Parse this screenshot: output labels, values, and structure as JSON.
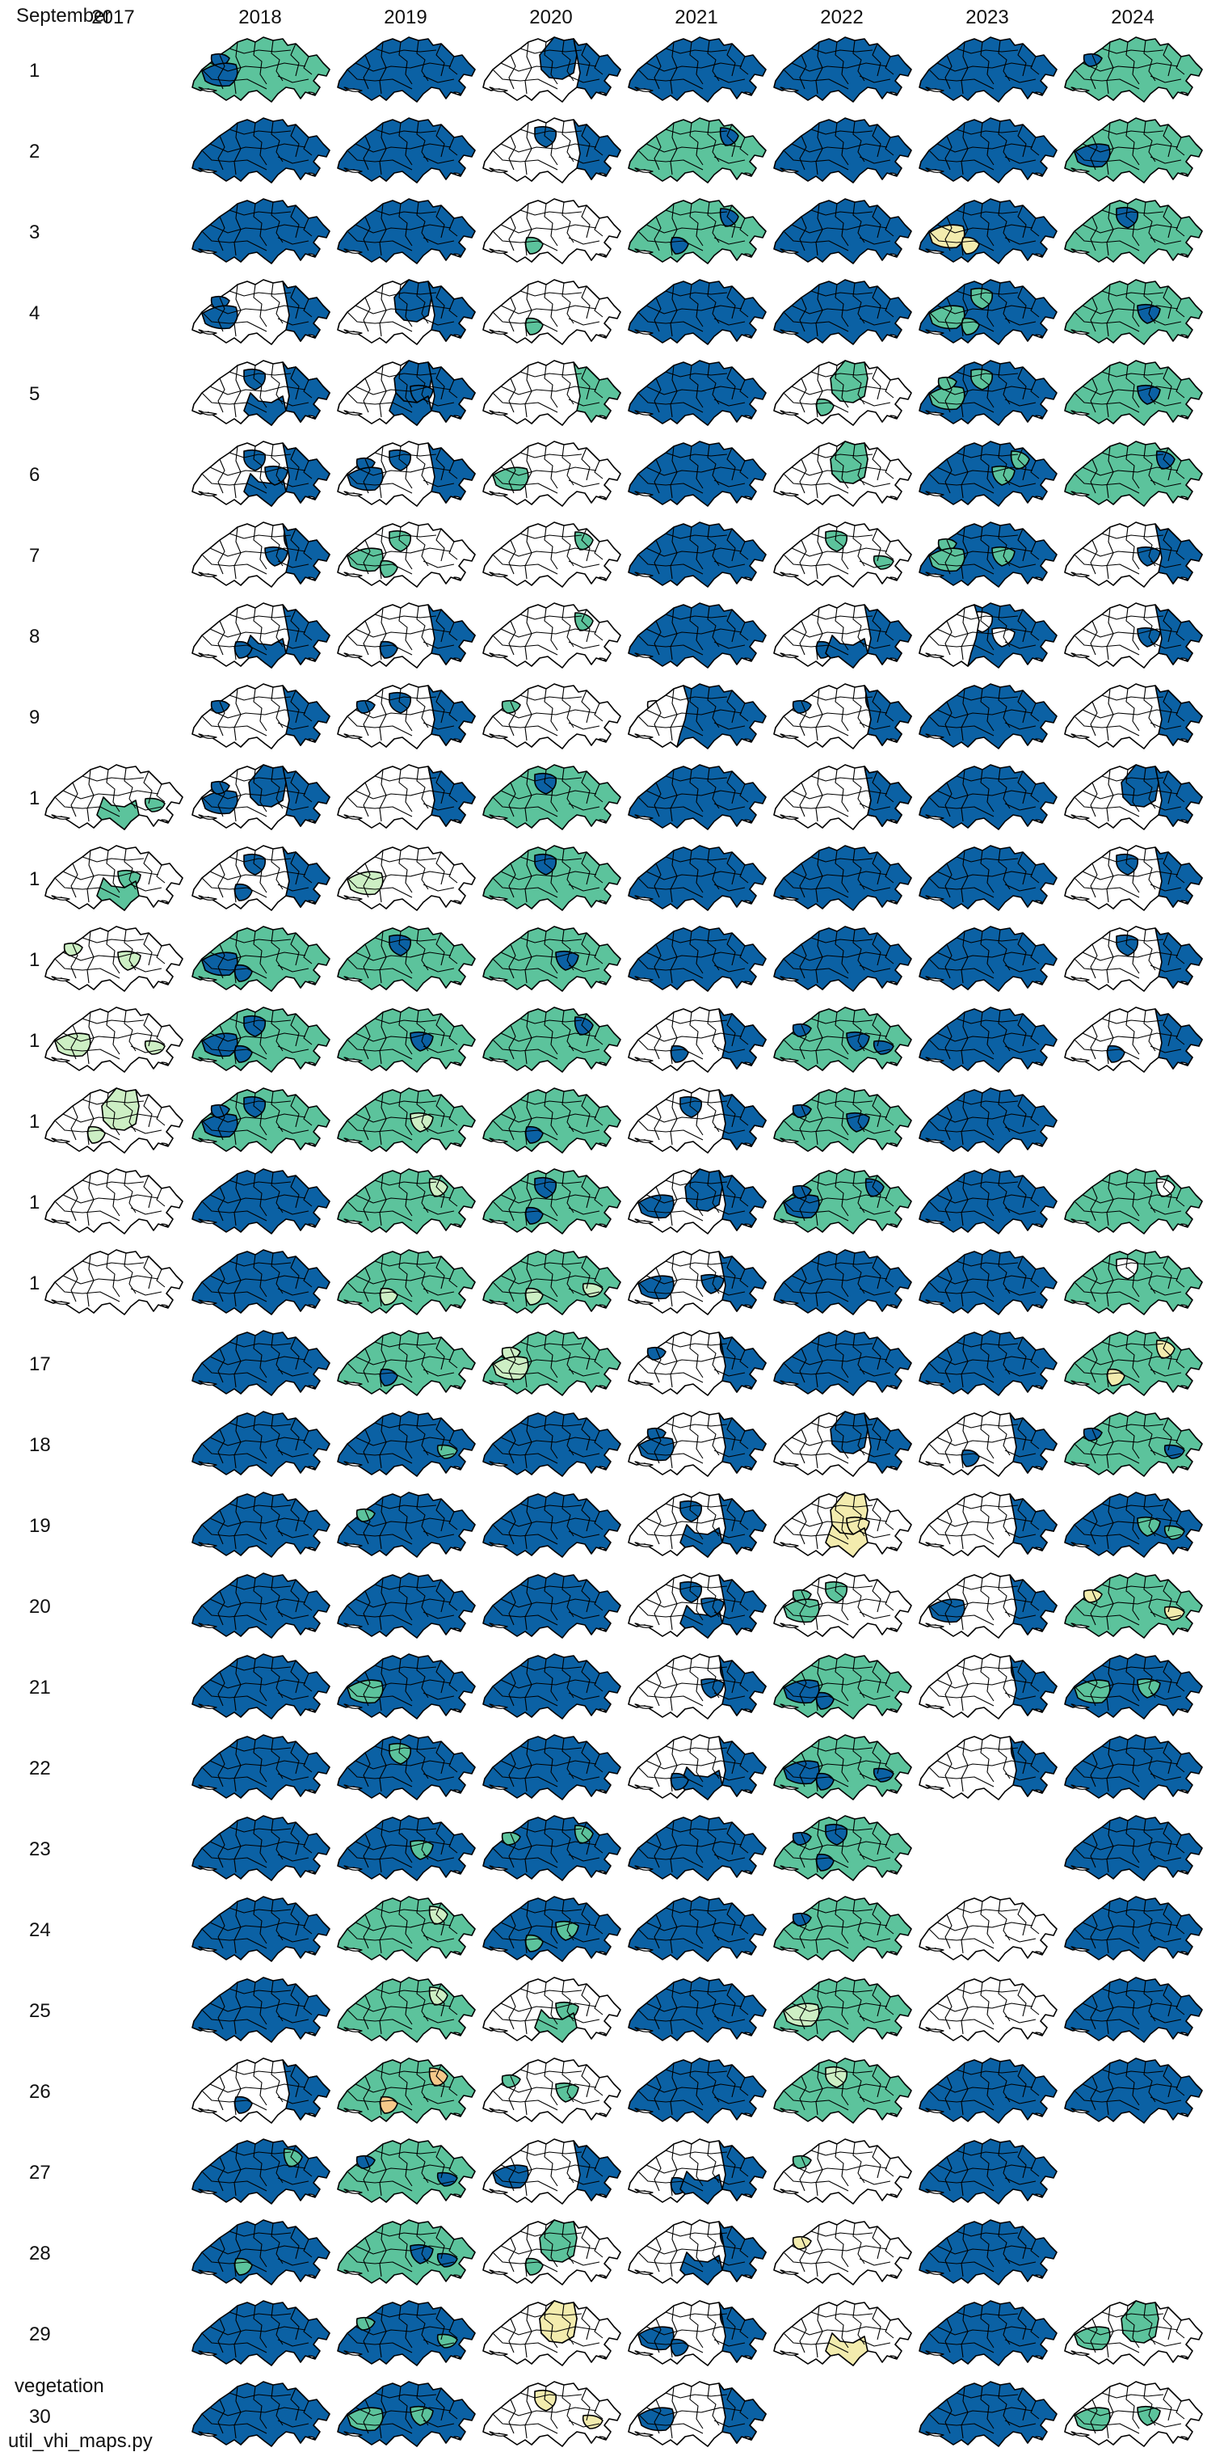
{
  "header": {
    "month_label": "September"
  },
  "years": [
    "2017",
    "2018",
    "2019",
    "2020",
    "2021",
    "2022",
    "2023",
    "2024"
  ],
  "days": [
    "1",
    "2",
    "3",
    "4",
    "5",
    "6",
    "7",
    "8",
    "9",
    "1",
    "1",
    "1",
    "1",
    "1",
    "1",
    "1",
    "17",
    "18",
    "19",
    "20",
    "21",
    "22",
    "23",
    "24",
    "25",
    "26",
    "27",
    "28",
    "29",
    "30"
  ],
  "footer": {
    "variable_label": "vegetation",
    "script_label": "util_vhi_maps.py"
  },
  "palette": {
    "B": "#0b61a4",
    "W": "#ffffff",
    "G": "#5cc39c",
    "L": "#cdefc4",
    "Y": "#f3ecae",
    "O": "#f5c98a"
  },
  "grid": [
    [
      "-",
      "GB",
      "B",
      "WB",
      "B",
      "B",
      "B",
      "GB"
    ],
    [
      "-",
      "B",
      "B",
      "WB",
      "GB",
      "B",
      "B",
      "GB"
    ],
    [
      "-",
      "B",
      "B",
      "WG",
      "GB",
      "B",
      "BY",
      "GB"
    ],
    [
      "-",
      "WB",
      "WB",
      "WG",
      "B",
      "B",
      "BG",
      "GB"
    ],
    [
      "-",
      "WB",
      "WB",
      "WG",
      "B",
      "WG",
      "BG",
      "GB"
    ],
    [
      "-",
      "WB",
      "WB",
      "WG",
      "B",
      "WG",
      "BG",
      "GB"
    ],
    [
      "-",
      "WB",
      "WG",
      "WG",
      "B",
      "WG",
      "BG",
      "WB"
    ],
    [
      "-",
      "WB",
      "WB",
      "WG",
      "B",
      "WB",
      "BW",
      "WB"
    ],
    [
      "-",
      "WB",
      "WB",
      "WG",
      "BW",
      "WB",
      "B",
      "WB"
    ],
    [
      "WG",
      "WB",
      "WB",
      "GB",
      "B",
      "WB",
      "B",
      "WB"
    ],
    [
      "WG",
      "WB",
      "WL",
      "GB",
      "B",
      "B",
      "B",
      "WB"
    ],
    [
      "WL",
      "GB",
      "GB",
      "GB",
      "B",
      "B",
      "B",
      "WB"
    ],
    [
      "WL",
      "GB",
      "GB",
      "GB",
      "WB",
      "GB",
      "B",
      "WB"
    ],
    [
      "WL",
      "GB",
      "GL",
      "GB",
      "WB",
      "GB",
      "B",
      "-"
    ],
    [
      "W",
      "B",
      "GL",
      "GB",
      "WB",
      "GB",
      "B",
      "GW"
    ],
    [
      "W",
      "B",
      "GL",
      "GL",
      "WB",
      "B",
      "B",
      "GW"
    ],
    [
      "-",
      "B",
      "GB",
      "GL",
      "WB",
      "B",
      "B",
      "GY"
    ],
    [
      "-",
      "B",
      "BG",
      "B",
      "WB",
      "WB",
      "WB",
      "GB"
    ],
    [
      "-",
      "B",
      "BG",
      "B",
      "WB",
      "WY",
      "WB",
      "BG"
    ],
    [
      "-",
      "B",
      "B",
      "B",
      "WB",
      "WG",
      "WB",
      "GY"
    ],
    [
      "-",
      "B",
      "BG",
      "B",
      "WB",
      "GB",
      "WB",
      "BG"
    ],
    [
      "-",
      "B",
      "BG",
      "B",
      "WB",
      "GB",
      "WB",
      "B"
    ],
    [
      "-",
      "B",
      "BG",
      "BG",
      "B",
      "GB",
      "-",
      "B"
    ],
    [
      "-",
      "B",
      "GL",
      "BG",
      "B",
      "GB",
      "W",
      "B"
    ],
    [
      "-",
      "B",
      "GL",
      "WG",
      "B",
      "GL",
      "W",
      "B"
    ],
    [
      "-",
      "WB",
      "GO",
      "WG",
      "B",
      "GL",
      "B",
      "B"
    ],
    [
      "-",
      "BG",
      "GB",
      "WB",
      "WB",
      "WG",
      "B",
      "-"
    ],
    [
      "-",
      "BG",
      "GB",
      "WG",
      "WB",
      "WY",
      "B",
      "-"
    ],
    [
      "-",
      "B",
      "BG",
      "WY",
      "WB",
      "WY",
      "B",
      "WG"
    ],
    [
      "-",
      "B",
      "BG",
      "WY",
      "WB",
      "-",
      "B",
      "WG"
    ]
  ]
}
